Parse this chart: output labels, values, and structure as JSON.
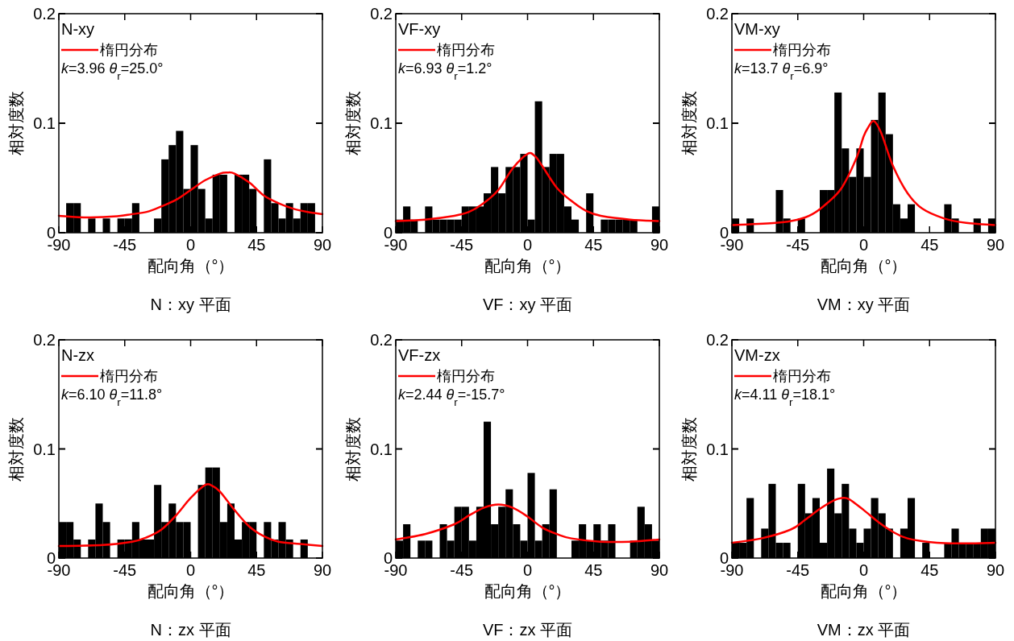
{
  "chart_data": [
    {
      "type": "histogram",
      "title": "N：xy 平面",
      "xlabel": "配向角（°）",
      "ylabel": "相対度数",
      "annotations": [
        "N-xy",
        "*k*=3.96 *θ*$_{r}$=25.0°"
      ],
      "legend": "top left",
      "xlim": [
        -90,
        90
      ],
      "ylim": [
        0,
        0.2
      ],
      "xticks": [
        -90,
        -45,
        0,
        45,
        90
      ],
      "yticks": [
        0,
        0.1,
        0.2
      ],
      "bins": [
        -90,
        -85,
        -80,
        -75,
        -70,
        -65,
        -60,
        -55,
        -50,
        -45,
        -40,
        -35,
        -30,
        -25,
        -20,
        -15,
        -10,
        -5,
        0,
        5,
        10,
        15,
        20,
        25,
        30,
        35,
        40,
        45,
        50,
        55,
        60,
        65,
        70,
        75,
        80,
        85,
        90
      ],
      "series": [
        {
          "color": "#000000",
          "values": [
            0,
            0.027,
            0.027,
            0,
            0.013,
            0,
            0.013,
            0,
            0.013,
            0.013,
            0.027,
            0,
            0,
            0.013,
            0.067,
            0.08,
            0.093,
            0.04,
            0.08,
            0.04,
            0.013,
            0.053,
            0.053,
            0,
            0.053,
            0.053,
            0.04,
            0,
            0.067,
            0.027,
            0.013,
            0.027,
            0.013,
            0.027,
            0.027,
            0
          ]
        },
        {
          "type": "line",
          "name": "楕円分布",
          "color": "#ff0000",
          "x": [
            -90,
            -70,
            -50,
            -40,
            -30,
            -20,
            -10,
            0,
            10,
            20,
            25,
            30,
            40,
            50,
            60,
            70,
            80,
            90
          ],
          "values": [
            0.0155,
            0.014,
            0.015,
            0.017,
            0.019,
            0.024,
            0.03,
            0.039,
            0.048,
            0.054,
            0.055,
            0.054,
            0.046,
            0.034,
            0.027,
            0.022,
            0.019,
            0.017
          ]
        }
      ]
    },
    {
      "type": "histogram",
      "title": "VF：xy 平面",
      "xlabel": "配向角（°）",
      "ylabel": "相対度数",
      "annotations": [
        "VF-xy",
        "*k*=6.93 *θ*$_{r}$=1.2°"
      ],
      "legend": "top left",
      "xlim": [
        -90,
        90
      ],
      "ylim": [
        0,
        0.2
      ],
      "xticks": [
        -90,
        -45,
        0,
        45,
        90
      ],
      "yticks": [
        0,
        0.1,
        0.2
      ],
      "bins": [
        -90,
        -85,
        -80,
        -75,
        -70,
        -65,
        -60,
        -55,
        -50,
        -45,
        -40,
        -35,
        -30,
        -25,
        -20,
        -15,
        -10,
        -5,
        0,
        5,
        10,
        15,
        20,
        25,
        30,
        35,
        40,
        45,
        50,
        55,
        60,
        65,
        70,
        75,
        80,
        85,
        90
      ],
      "series": [
        {
          "color": "#000000",
          "values": [
            0.012,
            0.024,
            0.012,
            0,
            0.024,
            0.012,
            0.012,
            0.012,
            0.012,
            0.024,
            0.024,
            0.024,
            0.036,
            0.06,
            0.036,
            0.06,
            0.06,
            0.072,
            0.012,
            0.12,
            0.06,
            0.072,
            0.072,
            0.024,
            0.012,
            0,
            0.036,
            0,
            0.012,
            0.012,
            0.012,
            0.012,
            0.012,
            0,
            0,
            0.024
          ]
        },
        {
          "type": "line",
          "name": "楕円分布",
          "color": "#ff0000",
          "x": [
            -90,
            -70,
            -50,
            -40,
            -30,
            -20,
            -10,
            0,
            5,
            10,
            20,
            30,
            40,
            50,
            70,
            90
          ],
          "values": [
            0.0106,
            0.012,
            0.0155,
            0.019,
            0.027,
            0.039,
            0.059,
            0.072,
            0.07,
            0.061,
            0.041,
            0.029,
            0.02,
            0.0155,
            0.012,
            0.0106
          ]
        }
      ]
    },
    {
      "type": "histogram",
      "title": "VM：xy 平面",
      "xlabel": "配向角（°）",
      "ylabel": "相対度数",
      "annotations": [
        "VM-xy",
        "*k*=13.7 *θ*$_{r}$=6.9°"
      ],
      "legend": "top left",
      "xlim": [
        -90,
        90
      ],
      "ylim": [
        0,
        0.2
      ],
      "xticks": [
        -90,
        -45,
        0,
        45,
        90
      ],
      "yticks": [
        0,
        0.1,
        0.2
      ],
      "bins": [
        -90,
        -85,
        -80,
        -75,
        -70,
        -65,
        -60,
        -55,
        -50,
        -45,
        -40,
        -35,
        -30,
        -25,
        -20,
        -15,
        -10,
        -5,
        0,
        5,
        10,
        15,
        20,
        25,
        30,
        35,
        40,
        45,
        50,
        55,
        60,
        65,
        70,
        75,
        80,
        85,
        90
      ],
      "series": [
        {
          "color": "#000000",
          "values": [
            0.013,
            0,
            0.013,
            0,
            0,
            0,
            0.039,
            0.013,
            0,
            0.013,
            0,
            0,
            0.039,
            0.039,
            0.128,
            0.077,
            0.051,
            0.077,
            0.051,
            0.103,
            0.128,
            0.09,
            0.026,
            0.013,
            0.026,
            0,
            0,
            0,
            0,
            0.026,
            0.013,
            0,
            0,
            0.013,
            0,
            0.013
          ]
        },
        {
          "type": "line",
          "name": "楕円分布",
          "color": "#ff0000",
          "x": [
            -90,
            -60,
            -45,
            -35,
            -25,
            -15,
            -5,
            0,
            3,
            7,
            12,
            20,
            30,
            40,
            55,
            70,
            90
          ],
          "values": [
            0.007,
            0.009,
            0.012,
            0.017,
            0.027,
            0.041,
            0.068,
            0.088,
            0.096,
            0.102,
            0.091,
            0.061,
            0.036,
            0.022,
            0.013,
            0.009,
            0.007
          ]
        }
      ]
    },
    {
      "type": "histogram",
      "title": "N：zx 平面",
      "xlabel": "配向角（°）",
      "ylabel": "相対度数",
      "annotations": [
        "N-zx",
        "*k*=6.10 *θ*$_{r}$=11.8°"
      ],
      "legend": "top left",
      "xlim": [
        -90,
        90
      ],
      "ylim": [
        0,
        0.2
      ],
      "xticks": [
        -90,
        -45,
        0,
        45,
        90
      ],
      "yticks": [
        0,
        0.1,
        0.2
      ],
      "bins": [
        -90,
        -85,
        -80,
        -75,
        -70,
        -65,
        -60,
        -55,
        -50,
        -45,
        -40,
        -35,
        -30,
        -25,
        -20,
        -15,
        -10,
        -5,
        0,
        5,
        10,
        15,
        20,
        25,
        30,
        35,
        40,
        45,
        50,
        55,
        60,
        65,
        70,
        75,
        80,
        85,
        90
      ],
      "series": [
        {
          "color": "#000000",
          "values": [
            0.033,
            0.033,
            0.017,
            0,
            0.017,
            0.05,
            0.033,
            0,
            0.017,
            0.017,
            0.033,
            0.017,
            0.017,
            0.067,
            0.033,
            0.05,
            0.033,
            0.033,
            0,
            0.067,
            0.083,
            0.083,
            0.033,
            0.05,
            0.017,
            0.033,
            0.033,
            0,
            0.033,
            0.017,
            0.033,
            0.017,
            0,
            0.017,
            0,
            0
          ]
        },
        {
          "type": "line",
          "name": "楕円分布",
          "color": "#ff0000",
          "x": [
            -90,
            -60,
            -40,
            -30,
            -20,
            -10,
            0,
            10,
            15,
            20,
            30,
            40,
            50,
            60,
            75,
            90
          ],
          "values": [
            0.011,
            0.012,
            0.015,
            0.019,
            0.026,
            0.039,
            0.055,
            0.067,
            0.066,
            0.061,
            0.044,
            0.029,
            0.02,
            0.015,
            0.013,
            0.011
          ]
        }
      ]
    },
    {
      "type": "histogram",
      "title": "VF：zx 平面",
      "xlabel": "配向角（°）",
      "ylabel": "相対度数",
      "annotations": [
        "VF-zx",
        "*k*=2.44 *θ*$_{r}$=-15.7°"
      ],
      "legend": "top left",
      "xlim": [
        -90,
        90
      ],
      "ylim": [
        0,
        0.2
      ],
      "xticks": [
        -90,
        -45,
        0,
        45,
        90
      ],
      "yticks": [
        0,
        0.1,
        0.2
      ],
      "bins": [
        -90,
        -85,
        -80,
        -75,
        -70,
        -65,
        -60,
        -55,
        -50,
        -45,
        -40,
        -35,
        -30,
        -25,
        -20,
        -15,
        -10,
        -5,
        0,
        5,
        10,
        15,
        20,
        25,
        30,
        35,
        40,
        45,
        50,
        55,
        60,
        65,
        70,
        75,
        80,
        85,
        90
      ],
      "series": [
        {
          "color": "#000000",
          "values": [
            0.016,
            0.031,
            0,
            0.016,
            0.016,
            0,
            0.031,
            0.016,
            0.047,
            0.047,
            0.016,
            0.047,
            0.125,
            0.031,
            0.047,
            0.063,
            0.031,
            0.016,
            0.078,
            0.016,
            0.031,
            0.063,
            0,
            0,
            0.016,
            0.031,
            0.016,
            0.031,
            0.016,
            0.031,
            0,
            0,
            0.016,
            0.047,
            0.031,
            0.016
          ]
        },
        {
          "type": "line",
          "name": "楕円分布",
          "color": "#ff0000",
          "x": [
            -90,
            -70,
            -50,
            -40,
            -30,
            -20,
            -10,
            0,
            10,
            20,
            30,
            50,
            70,
            90
          ],
          "values": [
            0.017,
            0.022,
            0.031,
            0.039,
            0.046,
            0.049,
            0.046,
            0.038,
            0.028,
            0.022,
            0.018,
            0.015,
            0.015,
            0.017
          ]
        }
      ]
    },
    {
      "type": "histogram",
      "title": "VM：zx 平面",
      "xlabel": "配向角（°）",
      "ylabel": "相対度数",
      "annotations": [
        "VM-zx",
        "*k*=4.11 *θ*$_{r}$=18.1°"
      ],
      "legend": "top left",
      "xlim": [
        -90,
        90
      ],
      "ylim": [
        0,
        0.2
      ],
      "xticks": [
        -90,
        -45,
        0,
        45,
        90
      ],
      "yticks": [
        0,
        0.1,
        0.2
      ],
      "bins": [
        -90,
        -85,
        -80,
        -75,
        -70,
        -65,
        -60,
        -55,
        -50,
        -45,
        -40,
        -35,
        -30,
        -25,
        -20,
        -15,
        -10,
        -5,
        0,
        5,
        10,
        15,
        20,
        25,
        30,
        35,
        40,
        45,
        50,
        55,
        60,
        65,
        70,
        75,
        80,
        85,
        90
      ],
      "series": [
        {
          "color": "#000000",
          "values": [
            0.014,
            0.014,
            0.055,
            0,
            0.027,
            0.068,
            0.014,
            0.014,
            0,
            0.068,
            0.041,
            0.055,
            0.014,
            0.082,
            0.041,
            0.068,
            0.027,
            0.014,
            0.027,
            0.055,
            0.041,
            0.027,
            0,
            0.027,
            0.055,
            0,
            0.014,
            0,
            0,
            0.014,
            0.027,
            0.014,
            0.014,
            0.014,
            0.027,
            0.027
          ]
        },
        {
          "type": "line",
          "name": "楕円分布",
          "color": "#ff0000",
          "x": [
            -90,
            -70,
            -50,
            -40,
            -30,
            -20,
            -15,
            -10,
            0,
            10,
            20,
            30,
            50,
            70,
            90
          ],
          "values": [
            0.014,
            0.018,
            0.026,
            0.035,
            0.045,
            0.053,
            0.055,
            0.054,
            0.044,
            0.033,
            0.024,
            0.018,
            0.014,
            0.0135,
            0.014
          ]
        }
      ]
    }
  ]
}
